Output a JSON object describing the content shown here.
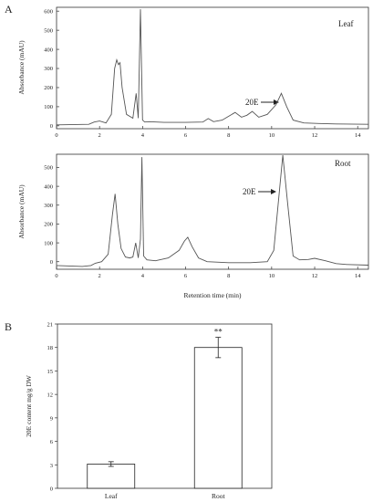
{
  "figure": {
    "panel_a_label": "A",
    "panel_b_label": "B"
  },
  "chart_data": [
    {
      "type": "line",
      "panel": "A",
      "tag": "Leaf",
      "ylabel": "Absorbance (mAU)",
      "xlabel": "",
      "xlim": [
        0,
        14.5
      ],
      "ylim": [
        -15,
        620
      ],
      "xticks": [
        0,
        2,
        4,
        6,
        8,
        10,
        12,
        14
      ],
      "yticks": [
        0,
        100,
        200,
        300,
        400,
        500,
        600
      ],
      "annotation": {
        "text": "20E",
        "x": 10.45,
        "y": 170
      },
      "series": [
        {
          "x": [
            0.0,
            1.5,
            1.75,
            2.0,
            2.3,
            2.55,
            2.7,
            2.8,
            2.88,
            2.95,
            3.05,
            3.25,
            3.55,
            3.7,
            3.8,
            3.9,
            4.0,
            4.1,
            4.3,
            5.0,
            6.0,
            6.8,
            7.05,
            7.3,
            7.7,
            8.3,
            8.6,
            8.85,
            9.1,
            9.4,
            9.8,
            10.2,
            10.45,
            10.7,
            11.0,
            11.5,
            12.2,
            13.0,
            14.5
          ],
          "y": [
            5,
            8,
            20,
            25,
            15,
            60,
            300,
            345,
            320,
            330,
            200,
            60,
            40,
            170,
            40,
            610,
            30,
            20,
            22,
            18,
            18,
            20,
            38,
            22,
            30,
            70,
            45,
            55,
            75,
            45,
            60,
            110,
            170,
            100,
            30,
            15,
            12,
            10,
            8
          ]
        }
      ]
    },
    {
      "type": "line",
      "panel": "A",
      "tag": "Root",
      "ylabel": "Absorbance (mAU)",
      "xlabel": "Retention time (min)",
      "xlim": [
        0,
        14.5
      ],
      "ylim": [
        -40,
        570
      ],
      "xticks": [
        0,
        2,
        4,
        6,
        8,
        10,
        12,
        14
      ],
      "yticks": [
        0,
        100,
        200,
        300,
        400,
        500
      ],
      "annotation": {
        "text": "20E",
        "x": 10.5,
        "y": 470
      },
      "series": [
        {
          "x": [
            0.0,
            1.2,
            1.6,
            1.8,
            2.1,
            2.4,
            2.6,
            2.72,
            2.85,
            3.0,
            3.2,
            3.4,
            3.55,
            3.68,
            3.8,
            3.9,
            3.97,
            4.05,
            4.2,
            4.6,
            5.2,
            5.7,
            5.95,
            6.1,
            6.3,
            6.6,
            7.0,
            8.0,
            9.0,
            9.8,
            10.1,
            10.3,
            10.52,
            10.75,
            11.0,
            11.3,
            11.7,
            12.0,
            12.5,
            13.0,
            13.5,
            14.5
          ],
          "y": [
            -20,
            -25,
            -20,
            -8,
            0,
            40,
            250,
            360,
            200,
            70,
            25,
            20,
            25,
            100,
            20,
            120,
            555,
            30,
            10,
            5,
            20,
            60,
            110,
            130,
            80,
            20,
            0,
            -5,
            -5,
            0,
            60,
            300,
            565,
            300,
            30,
            10,
            12,
            18,
            5,
            -10,
            -15,
            -18
          ]
        }
      ]
    },
    {
      "type": "bar",
      "panel": "B",
      "ylabel": "20E content mg/g DW",
      "categories": [
        "Leaf",
        "Root"
      ],
      "values": [
        3.1,
        18.0
      ],
      "errors": [
        0.3,
        1.3
      ],
      "significance": [
        "",
        "**"
      ],
      "ylim": [
        0,
        21
      ],
      "yticks": [
        0,
        3,
        6,
        9,
        12,
        15,
        18,
        21
      ]
    }
  ]
}
